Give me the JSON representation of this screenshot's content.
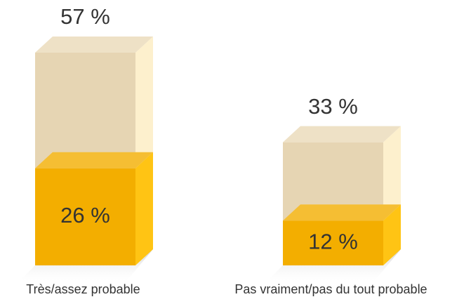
{
  "chart_data": {
    "type": "bar",
    "categories": [
      "Très/assez probable",
      "Pas vraiment/pas du tout probable"
    ],
    "series": [
      {
        "color": "#e6d5b3",
        "values": [
          57,
          33
        ],
        "value_labels": [
          "57 %",
          "33 %"
        ]
      },
      {
        "color": "#f3ae00",
        "values": [
          26,
          12
        ],
        "value_labels": [
          "26 %",
          "12 %"
        ]
      }
    ]
  }
}
